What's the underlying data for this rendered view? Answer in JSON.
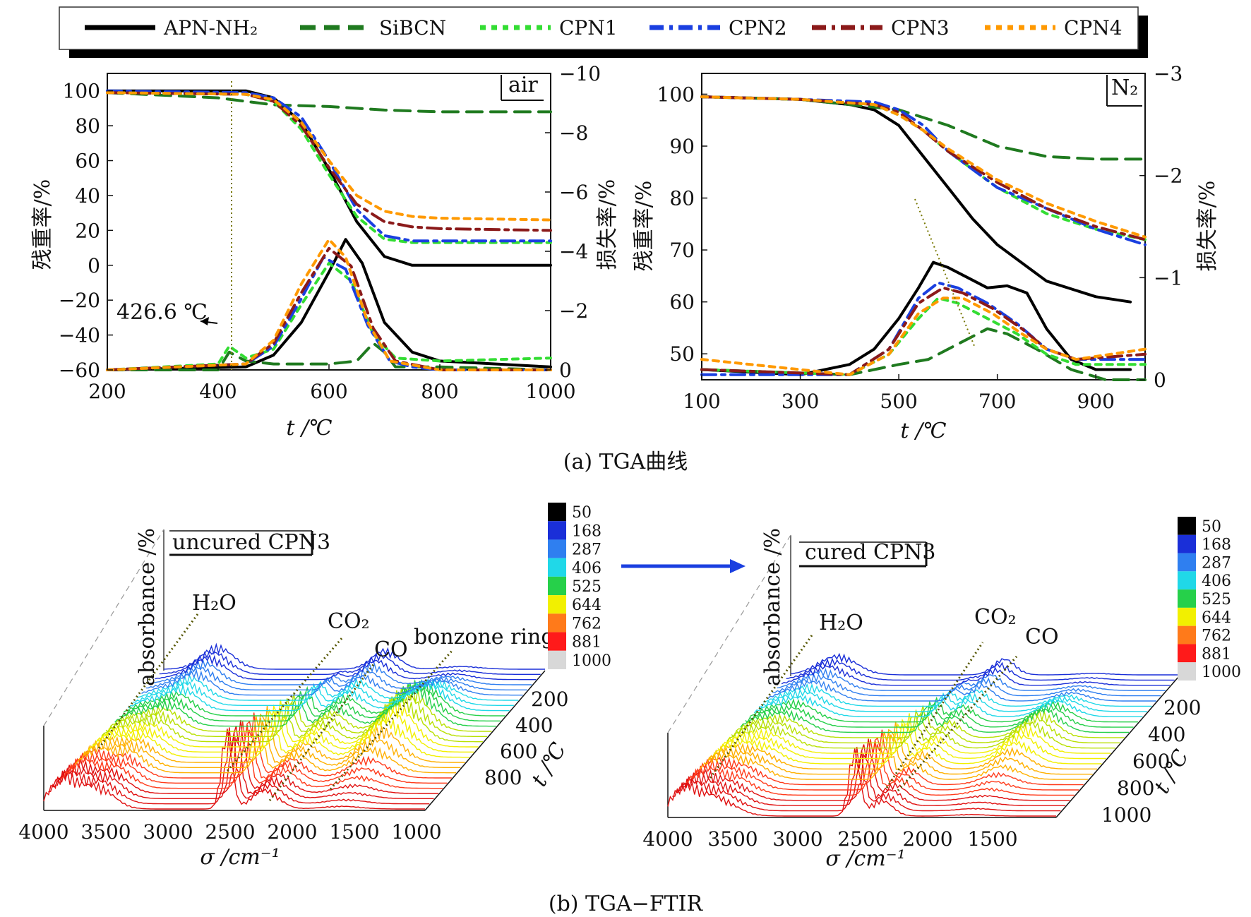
{
  "legend": {
    "entries": [
      {
        "name": "APN-NH₂",
        "color": "#000000",
        "dash": "solid"
      },
      {
        "name": "SiBCN",
        "color": "#1f7a1f",
        "dash": "long"
      },
      {
        "name": "CPN1",
        "color": "#33dd33",
        "dash": "short"
      },
      {
        "name": "CPN2",
        "color": "#1a3fe0",
        "dash": "dashdot"
      },
      {
        "name": "CPN3",
        "color": "#8b1a1a",
        "dash": "dashdot"
      },
      {
        "name": "CPN4",
        "color": "#ff9900",
        "dash": "short"
      }
    ]
  },
  "captions": {
    "a": "(a)  TGA曲线",
    "b": "(b)  TGA−FTIR"
  },
  "chart_data": [
    {
      "id": "tga-air",
      "type": "line",
      "tag": "air",
      "xlabel": "t /℃",
      "ylabel": "残重率/%",
      "y2label": "损失率/%",
      "xlim": [
        200,
        1000
      ],
      "ylim": [
        -60,
        110
      ],
      "y2lim": [
        0,
        -10
      ],
      "xticks": [
        200,
        400,
        600,
        800,
        1000
      ],
      "yticks": [
        100,
        80,
        60,
        40,
        20,
        0,
        -20,
        -40,
        -60
      ],
      "y2ticks": [
        -10,
        -8,
        -6,
        -4,
        -2,
        0
      ],
      "annotation": {
        "text": "426.6 ℃",
        "x": 426.6
      },
      "weight_series": [
        {
          "name": "APN-NH₂",
          "x": [
            200,
            450,
            500,
            550,
            600,
            650,
            700,
            750,
            800,
            1000
          ],
          "y": [
            100,
            100,
            96,
            82,
            55,
            25,
            5,
            0,
            0,
            0
          ]
        },
        {
          "name": "SiBCN",
          "x": [
            200,
            400,
            500,
            600,
            700,
            800,
            1000
          ],
          "y": [
            99,
            96,
            92,
            91,
            89,
            88,
            88
          ]
        },
        {
          "name": "CPN1",
          "x": [
            200,
            450,
            500,
            550,
            600,
            650,
            700,
            750,
            800,
            1000
          ],
          "y": [
            99,
            98,
            94,
            78,
            52,
            28,
            15,
            13,
            13,
            13
          ]
        },
        {
          "name": "CPN2",
          "x": [
            200,
            450,
            500,
            550,
            600,
            650,
            700,
            750,
            800,
            1000
          ],
          "y": [
            100,
            99,
            96,
            85,
            60,
            32,
            17,
            14,
            14,
            14
          ]
        },
        {
          "name": "CPN3",
          "x": [
            200,
            450,
            500,
            550,
            600,
            650,
            700,
            750,
            800,
            1000
          ],
          "y": [
            99,
            98,
            94,
            80,
            56,
            35,
            25,
            22,
            21,
            20
          ]
        },
        {
          "name": "CPN4",
          "x": [
            200,
            450,
            500,
            550,
            600,
            650,
            700,
            750,
            800,
            1000
          ],
          "y": [
            99,
            98,
            95,
            82,
            60,
            40,
            31,
            28,
            27,
            26
          ]
        }
      ],
      "loss_series": [
        {
          "name": "APN-NH₂",
          "x": [
            200,
            450,
            500,
            550,
            600,
            630,
            660,
            700,
            750,
            800,
            1000
          ],
          "y": [
            0,
            -0.1,
            -0.5,
            -1.6,
            -3.3,
            -4.4,
            -3.6,
            -1.6,
            -0.6,
            -0.3,
            -0.1
          ]
        },
        {
          "name": "SiBCN",
          "x": [
            200,
            400,
            420,
            450,
            500,
            600,
            650,
            680,
            700,
            720,
            800,
            1000
          ],
          "y": [
            0,
            0,
            -0.6,
            -0.3,
            -0.2,
            -0.2,
            -0.3,
            -0.9,
            -0.6,
            -0.1,
            -0.1,
            0
          ]
        },
        {
          "name": "CPN1",
          "x": [
            200,
            400,
            420,
            450,
            500,
            550,
            600,
            640,
            680,
            720,
            800,
            1000
          ],
          "y": [
            0,
            -0.2,
            -0.8,
            -0.4,
            -0.7,
            -2.2,
            -3.6,
            -3.0,
            -1.2,
            -0.4,
            -0.3,
            -0.4
          ]
        },
        {
          "name": "CPN2",
          "x": [
            200,
            450,
            500,
            550,
            590,
            630,
            670,
            710,
            750,
            800,
            1000
          ],
          "y": [
            0,
            -0.2,
            -0.8,
            -2.4,
            -3.8,
            -3.4,
            -1.5,
            -0.3,
            -0.1,
            0,
            0
          ]
        },
        {
          "name": "CPN3",
          "x": [
            200,
            450,
            500,
            550,
            600,
            640,
            680,
            720,
            800,
            1000
          ],
          "y": [
            0,
            -0.2,
            -0.9,
            -2.6,
            -4.1,
            -3.5,
            -1.4,
            -0.3,
            0,
            0
          ]
        },
        {
          "name": "CPN4",
          "x": [
            200,
            450,
            500,
            550,
            600,
            630,
            670,
            710,
            800,
            1000
          ],
          "y": [
            0,
            -0.2,
            -1.0,
            -2.9,
            -4.4,
            -3.8,
            -1.6,
            -0.3,
            0,
            0
          ]
        }
      ]
    },
    {
      "id": "tga-n2",
      "type": "line",
      "tag": "N₂",
      "xlabel": "t /℃",
      "ylabel": "残重率/%",
      "y2label": "损失率/%",
      "xlim": [
        100,
        1000
      ],
      "ylim": [
        45,
        104
      ],
      "y2lim": [
        0,
        -3
      ],
      "xticks": [
        100,
        300,
        500,
        700,
        900
      ],
      "yticks": [
        100,
        90,
        80,
        70,
        60,
        50
      ],
      "y2ticks": [
        -3,
        -2,
        -1,
        0
      ],
      "weight_series": [
        {
          "name": "APN-NH₂",
          "x": [
            100,
            300,
            400,
            450,
            500,
            550,
            600,
            650,
            700,
            800,
            900,
            970
          ],
          "y": [
            99.5,
            99,
            98,
            97,
            94,
            88,
            82,
            76,
            71,
            64,
            61,
            60
          ]
        },
        {
          "name": "SiBCN",
          "x": [
            100,
            300,
            500,
            600,
            700,
            800,
            900,
            1000
          ],
          "y": [
            99.5,
            99,
            97,
            94,
            90,
            88,
            87.5,
            87.5
          ]
        },
        {
          "name": "CPN1",
          "x": [
            100,
            300,
            450,
            500,
            550,
            600,
            700,
            800,
            900,
            1000
          ],
          "y": [
            99.5,
            99,
            98,
            96,
            93,
            89,
            82,
            77,
            74,
            72
          ]
        },
        {
          "name": "CPN2",
          "x": [
            100,
            300,
            450,
            500,
            550,
            600,
            700,
            800,
            900,
            1000
          ],
          "y": [
            99.5,
            99,
            98.5,
            97,
            94,
            89,
            82,
            78,
            74,
            71
          ]
        },
        {
          "name": "CPN3",
          "x": [
            100,
            300,
            450,
            500,
            550,
            600,
            700,
            800,
            900,
            1000
          ],
          "y": [
            99.5,
            99,
            98,
            96.5,
            93,
            89,
            83,
            78,
            74.5,
            72
          ]
        },
        {
          "name": "CPN4",
          "x": [
            100,
            300,
            450,
            500,
            550,
            600,
            700,
            800,
            900,
            1000
          ],
          "y": [
            99.5,
            99,
            98,
            96,
            93,
            89.5,
            83.5,
            79,
            75.5,
            72.5
          ]
        }
      ],
      "loss_series": [
        {
          "name": "APN-NH₂",
          "x": [
            100,
            300,
            400,
            450,
            500,
            540,
            570,
            600,
            640,
            680,
            720,
            760,
            800,
            850,
            900,
            970
          ],
          "y": [
            -0.1,
            -0.05,
            -0.15,
            -0.3,
            -0.6,
            -0.9,
            -1.15,
            -1.1,
            -1.0,
            -0.9,
            -0.92,
            -0.85,
            -0.5,
            -0.2,
            -0.1,
            -0.1
          ]
        },
        {
          "name": "SiBCN",
          "x": [
            100,
            400,
            500,
            560,
            620,
            680,
            720,
            780,
            850,
            920,
            1000
          ],
          "y": [
            -0.1,
            -0.05,
            -0.15,
            -0.2,
            -0.35,
            -0.5,
            -0.45,
            -0.3,
            -0.1,
            0,
            0
          ]
        },
        {
          "name": "CPN1",
          "x": [
            100,
            400,
            480,
            540,
            580,
            620,
            680,
            740,
            800,
            860,
            1000
          ],
          "y": [
            -0.1,
            -0.05,
            -0.25,
            -0.6,
            -0.8,
            -0.75,
            -0.6,
            -0.45,
            -0.25,
            -0.15,
            -0.15
          ]
        },
        {
          "name": "CPN2",
          "x": [
            100,
            400,
            480,
            540,
            580,
            620,
            680,
            740,
            800,
            860,
            1000
          ],
          "y": [
            -0.05,
            -0.05,
            -0.3,
            -0.8,
            -0.95,
            -0.9,
            -0.75,
            -0.55,
            -0.3,
            -0.2,
            -0.2
          ]
        },
        {
          "name": "CPN3",
          "x": [
            100,
            400,
            480,
            540,
            590,
            630,
            690,
            750,
            800,
            860,
            1000
          ],
          "y": [
            -0.1,
            -0.05,
            -0.3,
            -0.75,
            -0.9,
            -0.85,
            -0.7,
            -0.5,
            -0.3,
            -0.2,
            -0.25
          ]
        },
        {
          "name": "CPN4",
          "x": [
            100,
            400,
            480,
            540,
            590,
            630,
            690,
            750,
            800,
            860,
            1000
          ],
          "y": [
            -0.2,
            -0.05,
            -0.25,
            -0.65,
            -0.8,
            -0.8,
            -0.65,
            -0.45,
            -0.3,
            -0.2,
            -0.3
          ]
        }
      ]
    },
    {
      "id": "ftir-uncured",
      "type": "waterfall",
      "tag": "uncured CPN3",
      "xlabel": "σ /cm⁻¹",
      "zlabel": "absorbance /%",
      "tlabel": "t /℃",
      "xticks": [
        4000,
        3500,
        3000,
        2500,
        2000,
        1500,
        1000
      ],
      "tticks": [
        200,
        400,
        600,
        800
      ],
      "peaks": [
        "H₂O",
        "CO₂",
        "CO",
        "bonzone ring"
      ],
      "colorbar": [
        50,
        168,
        287,
        406,
        525,
        644,
        762,
        881,
        1000
      ]
    },
    {
      "id": "ftir-cured",
      "type": "waterfall",
      "tag": "cured CPN3",
      "xlabel": "σ  /cm⁻¹",
      "zlabel": "absorbance /%",
      "tlabel": "t /℃",
      "xticks": [
        4000,
        3500,
        3000,
        2500,
        2000,
        1500
      ],
      "tticks": [
        200,
        400,
        600,
        800,
        1000
      ],
      "peaks": [
        "H₂O",
        "CO₂",
        "CO"
      ],
      "colorbar": [
        50,
        168,
        287,
        406,
        525,
        644,
        762,
        881,
        1000
      ]
    }
  ]
}
